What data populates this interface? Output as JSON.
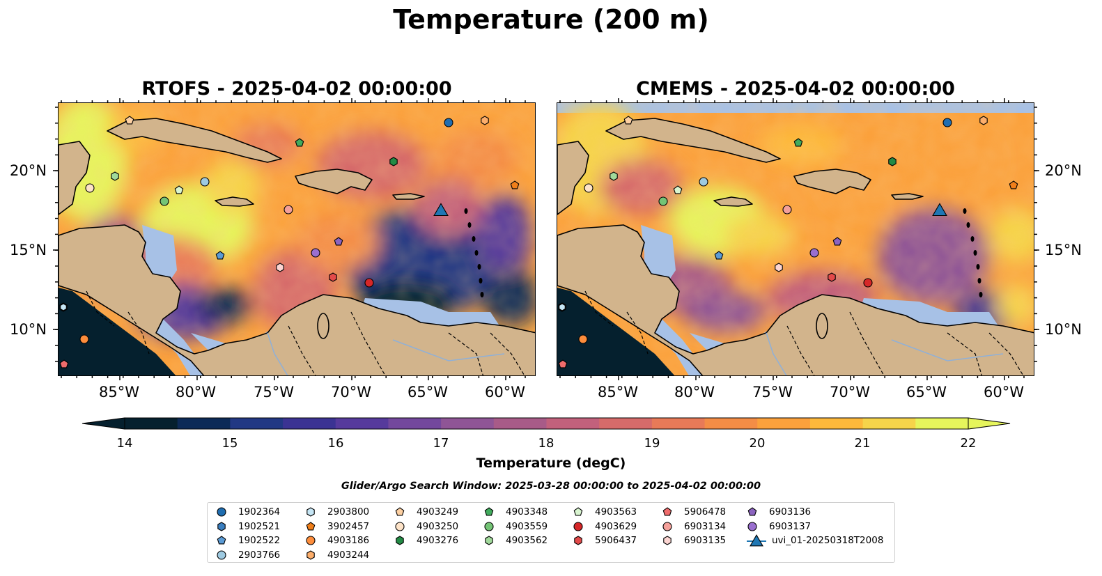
{
  "title": "Temperature (200 m)",
  "panels": [
    {
      "title": "RTOFS - 2025-04-02 00:00:00"
    },
    {
      "title": "CMEMS - 2025-04-02 00:00:00"
    }
  ],
  "axes": {
    "lon_labels": [
      "85°W",
      "80°W",
      "75°W",
      "70°W",
      "65°W",
      "60°W"
    ],
    "lat_labels": [
      "20°N",
      "15°N",
      "10°N"
    ]
  },
  "colorbar": {
    "label": "Temperature (degC)",
    "ticks": [
      "14",
      "15",
      "16",
      "17",
      "18",
      "19",
      "20",
      "21",
      "22"
    ],
    "range": [
      14,
      22
    ]
  },
  "search_window": "Glider/Argo Search Window: 2025-03-28 00:00:00 to 2025-04-02 00:00:00",
  "legend": [
    {
      "label": "1902364",
      "marker": "circle",
      "color": "#1f6db0"
    },
    {
      "label": "1902521",
      "marker": "hexagon",
      "color": "#3b7fc0"
    },
    {
      "label": "1902522",
      "marker": "pentagon",
      "color": "#5b9bd5"
    },
    {
      "label": "2903766",
      "marker": "circle",
      "color": "#9ecae1"
    },
    {
      "label": "2903800",
      "marker": "hexagon",
      "color": "#c6e6f5"
    },
    {
      "label": "3902457",
      "marker": "pentagon",
      "color": "#f07f1a"
    },
    {
      "label": "4903186",
      "marker": "circle",
      "color": "#fd8d3c"
    },
    {
      "label": "4903244",
      "marker": "hexagon",
      "color": "#fdae6b"
    },
    {
      "label": "4903249",
      "marker": "pentagon",
      "color": "#fdd0a2"
    },
    {
      "label": "4903250",
      "marker": "circle",
      "color": "#fde3c8"
    },
    {
      "label": "4903276",
      "marker": "hexagon",
      "color": "#238b45"
    },
    {
      "label": "4903348",
      "marker": "pentagon",
      "color": "#41ab5d"
    },
    {
      "label": "4903559",
      "marker": "circle",
      "color": "#74c476"
    },
    {
      "label": "4903562",
      "marker": "hexagon",
      "color": "#a1d99b"
    },
    {
      "label": "4903563",
      "marker": "pentagon",
      "color": "#d9f5d0"
    },
    {
      "label": "4903629",
      "marker": "circle",
      "color": "#d62728"
    },
    {
      "label": "5906437",
      "marker": "hexagon",
      "color": "#e34a4a"
    },
    {
      "label": "5906478",
      "marker": "pentagon",
      "color": "#f06c6c"
    },
    {
      "label": "6903134",
      "marker": "circle",
      "color": "#f4a09a"
    },
    {
      "label": "6903135",
      "marker": "hexagon",
      "color": "#fcd5d2"
    },
    {
      "label": "6903136",
      "marker": "pentagon",
      "color": "#8c64c0"
    },
    {
      "label": "6903137",
      "marker": "circle",
      "color": "#9a6fcf"
    },
    {
      "label": "uvi_01-20250318T2008",
      "marker": "triangle",
      "color": "#1f77b4"
    }
  ],
  "colors": {
    "land": "#d2b48c",
    "ocean_mask": "#a7c1e6",
    "colormap": [
      "#05202e",
      "#0c2a57",
      "#223884",
      "#3b3393",
      "#563a9c",
      "#73489d",
      "#8f5596",
      "#a85b88",
      "#c2617c",
      "#d66b6a",
      "#e87a58",
      "#f48d46",
      "#fba13c",
      "#fdb93b",
      "#f6d44a",
      "#e6f55c"
    ]
  }
}
